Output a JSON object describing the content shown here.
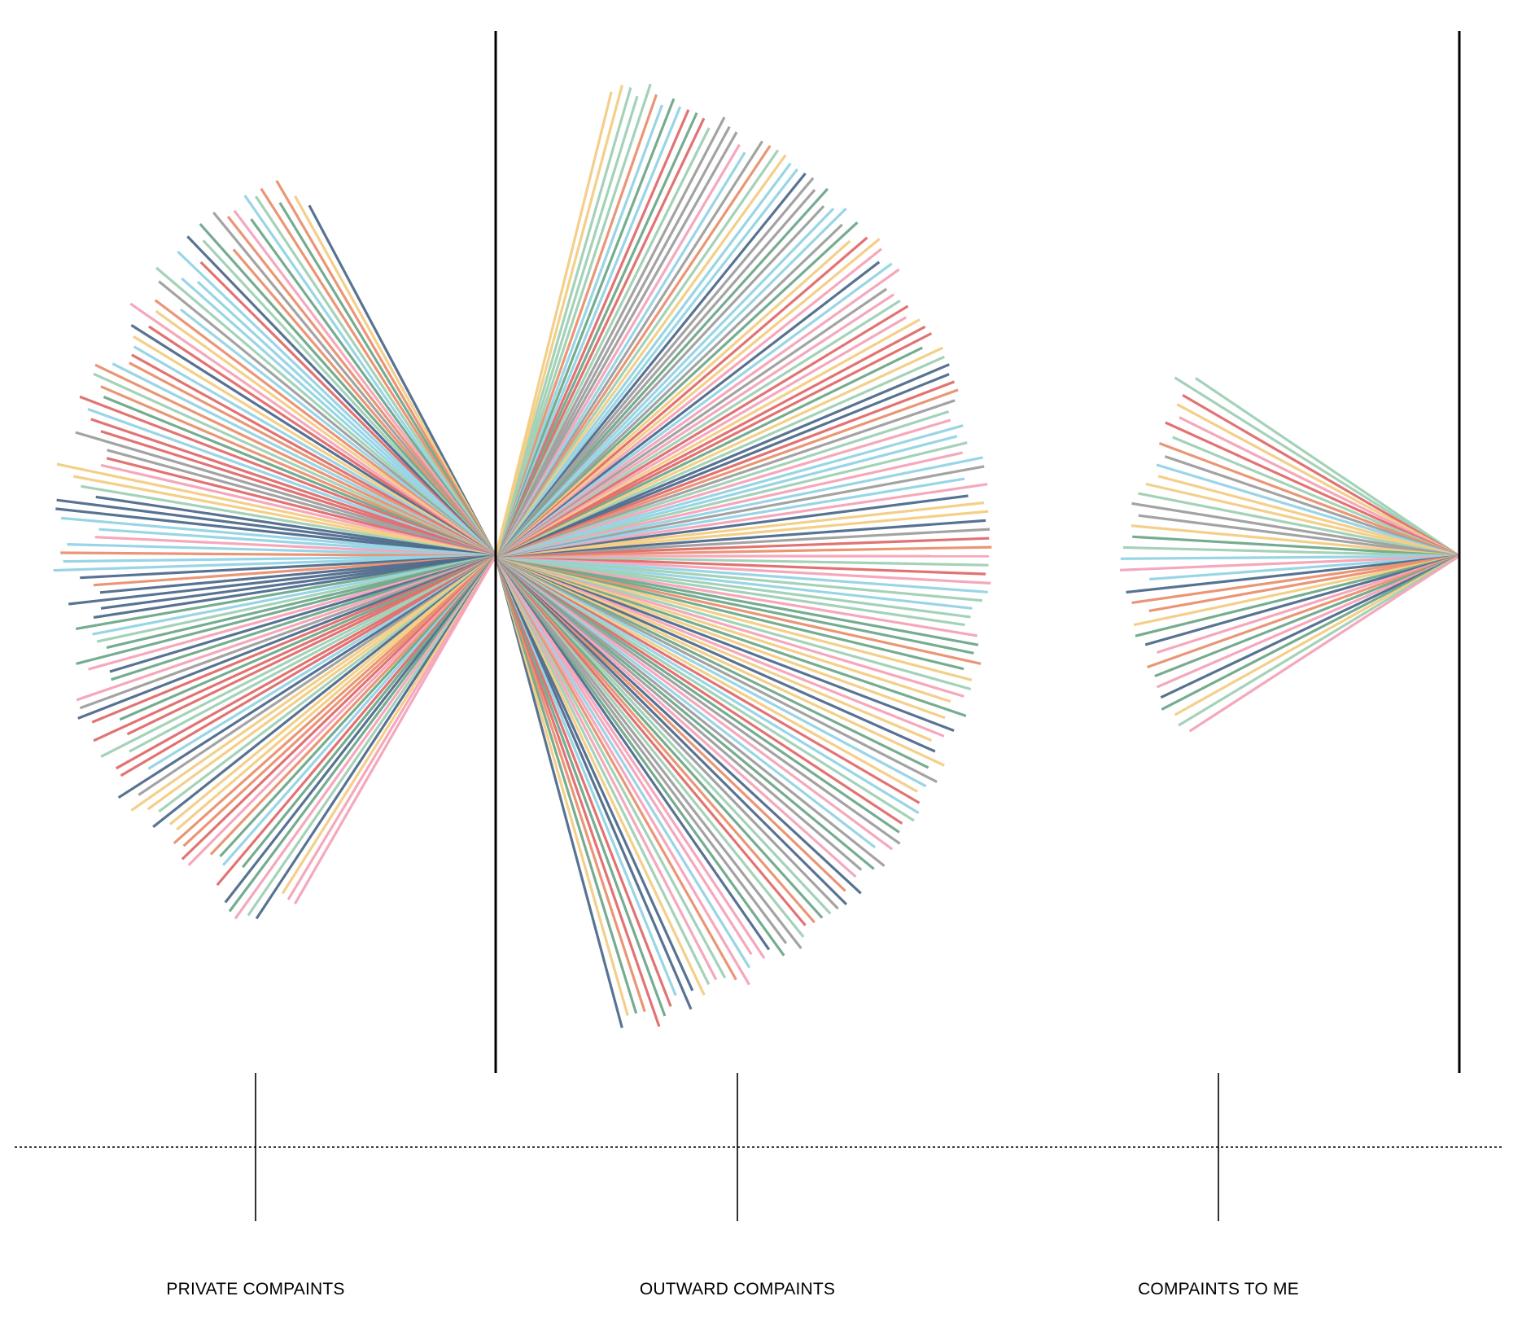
{
  "chart_data": {
    "type": "radial-line",
    "categories": [
      "PRIVATE COMPAINTS",
      "OUTWARD COMPAINTS",
      "COMPAINTS TO ME"
    ],
    "series": [
      {
        "category": "PRIVATE COMPAINTS",
        "count": 108,
        "direction": "left",
        "value_range": [
          0.85,
          0.96
        ]
      },
      {
        "category": "OUTWARD COMPAINTS",
        "count": 146,
        "direction": "right",
        "value_range": [
          0.95,
          1.0
        ]
      },
      {
        "category": "COMPAINTS TO ME",
        "count": 36,
        "direction": "left",
        "value_range": [
          0.76,
          0.84
        ]
      }
    ],
    "palette": [
      "#f4a3b8",
      "#f2cc84",
      "#93d3e4",
      "#e06b6b",
      "#e9906f",
      "#9fd0b4",
      "#6fa88a",
      "#9e9e9e",
      "#4f6b8c"
    ],
    "axis_color": "#000000",
    "baseline_style": "dotted"
  }
}
